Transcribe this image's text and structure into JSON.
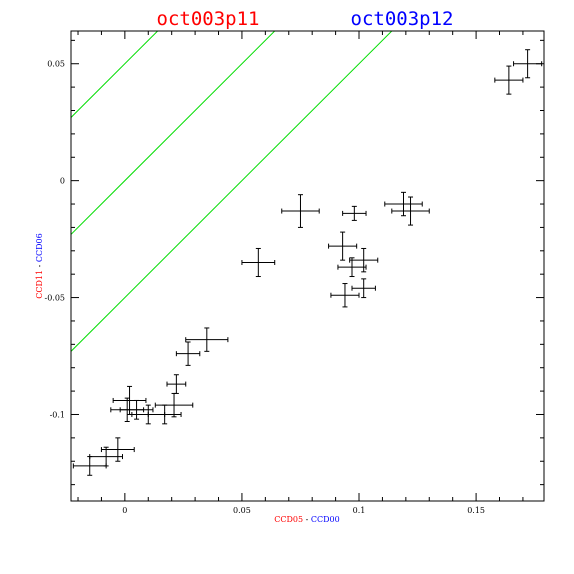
{
  "titles": [
    {
      "text": "oct003p11",
      "color": "#ff0000"
    },
    {
      "text": "oct003p12",
      "color": "#0000ff"
    }
  ],
  "chart_data": {
    "type": "scatter",
    "xlabel_parts": [
      {
        "text": "CCD05",
        "color": "#ff0000"
      },
      {
        "text": " - ",
        "color": "#000000"
      },
      {
        "text": "CCD00",
        "color": "#0000ff"
      }
    ],
    "ylabel_parts": [
      {
        "text": "CCD11",
        "color": "#ff0000"
      },
      {
        "text": " - ",
        "color": "#000000"
      },
      {
        "text": "CCD06",
        "color": "#0000ff"
      }
    ],
    "xlim": [
      -0.023,
      0.179
    ],
    "ylim": [
      -0.137,
      0.064
    ],
    "xticks": [
      {
        "value": 0,
        "label": "0"
      },
      {
        "value": 0.05,
        "label": "0.05"
      },
      {
        "value": 0.1,
        "label": "0.1"
      },
      {
        "value": 0.15,
        "label": "0.15"
      }
    ],
    "yticks": [
      {
        "value": -0.1,
        "label": "-0.1"
      },
      {
        "value": -0.05,
        "label": "-0.05"
      },
      {
        "value": 0,
        "label": "0"
      },
      {
        "value": 0.05,
        "label": "0.05"
      }
    ],
    "reference_lines": {
      "slope": 1,
      "intercepts": [
        0.05,
        0,
        -0.05
      ],
      "color": "#00dd00"
    },
    "points": [
      {
        "x": -0.015,
        "y": -0.122,
        "xerr": 0.007,
        "yerr": 0.004
      },
      {
        "x": -0.008,
        "y": -0.118,
        "xerr": 0.007,
        "yerr": 0.004
      },
      {
        "x": -0.003,
        "y": -0.115,
        "xerr": 0.007,
        "yerr": 0.005
      },
      {
        "x": 0.001,
        "y": -0.098,
        "xerr": 0.007,
        "yerr": 0.005
      },
      {
        "x": 0.002,
        "y": -0.094,
        "xerr": 0.007,
        "yerr": 0.006
      },
      {
        "x": 0.005,
        "y": -0.098,
        "xerr": 0.007,
        "yerr": 0.004
      },
      {
        "x": 0.01,
        "y": -0.1,
        "xerr": 0.007,
        "yerr": 0.004
      },
      {
        "x": 0.017,
        "y": -0.1,
        "xerr": 0.007,
        "yerr": 0.004
      },
      {
        "x": 0.021,
        "y": -0.096,
        "xerr": 0.008,
        "yerr": 0.005
      },
      {
        "x": 0.022,
        "y": -0.087,
        "xerr": 0.004,
        "yerr": 0.004
      },
      {
        "x": 0.027,
        "y": -0.074,
        "xerr": 0.005,
        "yerr": 0.005
      },
      {
        "x": 0.035,
        "y": -0.068,
        "xerr": 0.009,
        "yerr": 0.005
      },
      {
        "x": 0.057,
        "y": -0.035,
        "xerr": 0.007,
        "yerr": 0.006
      },
      {
        "x": 0.075,
        "y": -0.013,
        "xerr": 0.008,
        "yerr": 0.007
      },
      {
        "x": 0.093,
        "y": -0.028,
        "xerr": 0.006,
        "yerr": 0.006
      },
      {
        "x": 0.094,
        "y": -0.049,
        "xerr": 0.006,
        "yerr": 0.005
      },
      {
        "x": 0.097,
        "y": -0.037,
        "xerr": 0.006,
        "yerr": 0.004
      },
      {
        "x": 0.098,
        "y": -0.014,
        "xerr": 0.005,
        "yerr": 0.003
      },
      {
        "x": 0.102,
        "y": -0.034,
        "xerr": 0.006,
        "yerr": 0.005
      },
      {
        "x": 0.102,
        "y": -0.046,
        "xerr": 0.005,
        "yerr": 0.004
      },
      {
        "x": 0.119,
        "y": -0.01,
        "xerr": 0.008,
        "yerr": 0.005
      },
      {
        "x": 0.122,
        "y": -0.013,
        "xerr": 0.008,
        "yerr": 0.006
      },
      {
        "x": 0.164,
        "y": 0.043,
        "xerr": 0.006,
        "yerr": 0.006
      },
      {
        "x": 0.172,
        "y": 0.05,
        "xerr": 0.006,
        "yerr": 0.006
      }
    ]
  }
}
